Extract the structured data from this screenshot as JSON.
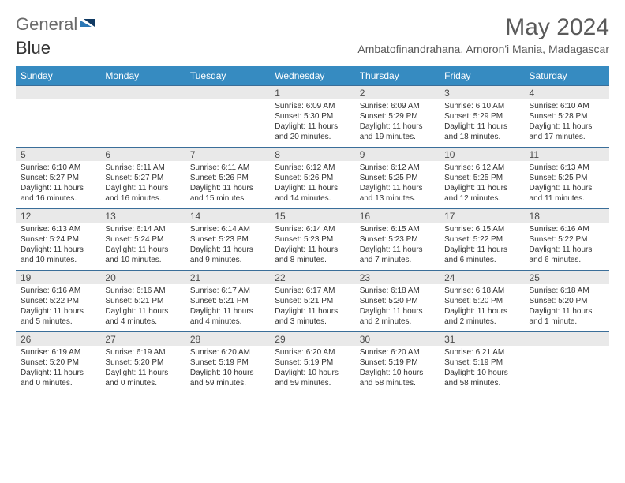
{
  "brand": {
    "part1": "General",
    "part2": "Blue"
  },
  "title": "May 2024",
  "location": "Ambatofinandrahana, Amoron'i Mania, Madagascar",
  "colors": {
    "header_bg": "#368bc1",
    "header_text": "#ffffff",
    "daynum_bg": "#e9e9e9",
    "row_border": "#3a6e99",
    "text": "#333333",
    "title_text": "#5a5a5a",
    "logo_gray": "#6a6a6a",
    "logo_blue": "#2b77b5",
    "page_bg": "#ffffff"
  },
  "typography": {
    "month_title_fontsize": 30,
    "location_fontsize": 14,
    "dayheader_fontsize": 12,
    "daynum_fontsize": 12,
    "daybody_fontsize": 10
  },
  "day_headers": [
    "Sunday",
    "Monday",
    "Tuesday",
    "Wednesday",
    "Thursday",
    "Friday",
    "Saturday"
  ],
  "weeks": [
    [
      {
        "n": "",
        "lines": [
          "",
          "",
          "",
          ""
        ]
      },
      {
        "n": "",
        "lines": [
          "",
          "",
          "",
          ""
        ]
      },
      {
        "n": "",
        "lines": [
          "",
          "",
          "",
          ""
        ]
      },
      {
        "n": "1",
        "lines": [
          "Sunrise: 6:09 AM",
          "Sunset: 5:30 PM",
          "Daylight: 11 hours",
          "and 20 minutes."
        ]
      },
      {
        "n": "2",
        "lines": [
          "Sunrise: 6:09 AM",
          "Sunset: 5:29 PM",
          "Daylight: 11 hours",
          "and 19 minutes."
        ]
      },
      {
        "n": "3",
        "lines": [
          "Sunrise: 6:10 AM",
          "Sunset: 5:29 PM",
          "Daylight: 11 hours",
          "and 18 minutes."
        ]
      },
      {
        "n": "4",
        "lines": [
          "Sunrise: 6:10 AM",
          "Sunset: 5:28 PM",
          "Daylight: 11 hours",
          "and 17 minutes."
        ]
      }
    ],
    [
      {
        "n": "5",
        "lines": [
          "Sunrise: 6:10 AM",
          "Sunset: 5:27 PM",
          "Daylight: 11 hours",
          "and 16 minutes."
        ]
      },
      {
        "n": "6",
        "lines": [
          "Sunrise: 6:11 AM",
          "Sunset: 5:27 PM",
          "Daylight: 11 hours",
          "and 16 minutes."
        ]
      },
      {
        "n": "7",
        "lines": [
          "Sunrise: 6:11 AM",
          "Sunset: 5:26 PM",
          "Daylight: 11 hours",
          "and 15 minutes."
        ]
      },
      {
        "n": "8",
        "lines": [
          "Sunrise: 6:12 AM",
          "Sunset: 5:26 PM",
          "Daylight: 11 hours",
          "and 14 minutes."
        ]
      },
      {
        "n": "9",
        "lines": [
          "Sunrise: 6:12 AM",
          "Sunset: 5:25 PM",
          "Daylight: 11 hours",
          "and 13 minutes."
        ]
      },
      {
        "n": "10",
        "lines": [
          "Sunrise: 6:12 AM",
          "Sunset: 5:25 PM",
          "Daylight: 11 hours",
          "and 12 minutes."
        ]
      },
      {
        "n": "11",
        "lines": [
          "Sunrise: 6:13 AM",
          "Sunset: 5:25 PM",
          "Daylight: 11 hours",
          "and 11 minutes."
        ]
      }
    ],
    [
      {
        "n": "12",
        "lines": [
          "Sunrise: 6:13 AM",
          "Sunset: 5:24 PM",
          "Daylight: 11 hours",
          "and 10 minutes."
        ]
      },
      {
        "n": "13",
        "lines": [
          "Sunrise: 6:14 AM",
          "Sunset: 5:24 PM",
          "Daylight: 11 hours",
          "and 10 minutes."
        ]
      },
      {
        "n": "14",
        "lines": [
          "Sunrise: 6:14 AM",
          "Sunset: 5:23 PM",
          "Daylight: 11 hours",
          "and 9 minutes."
        ]
      },
      {
        "n": "15",
        "lines": [
          "Sunrise: 6:14 AM",
          "Sunset: 5:23 PM",
          "Daylight: 11 hours",
          "and 8 minutes."
        ]
      },
      {
        "n": "16",
        "lines": [
          "Sunrise: 6:15 AM",
          "Sunset: 5:23 PM",
          "Daylight: 11 hours",
          "and 7 minutes."
        ]
      },
      {
        "n": "17",
        "lines": [
          "Sunrise: 6:15 AM",
          "Sunset: 5:22 PM",
          "Daylight: 11 hours",
          "and 6 minutes."
        ]
      },
      {
        "n": "18",
        "lines": [
          "Sunrise: 6:16 AM",
          "Sunset: 5:22 PM",
          "Daylight: 11 hours",
          "and 6 minutes."
        ]
      }
    ],
    [
      {
        "n": "19",
        "lines": [
          "Sunrise: 6:16 AM",
          "Sunset: 5:22 PM",
          "Daylight: 11 hours",
          "and 5 minutes."
        ]
      },
      {
        "n": "20",
        "lines": [
          "Sunrise: 6:16 AM",
          "Sunset: 5:21 PM",
          "Daylight: 11 hours",
          "and 4 minutes."
        ]
      },
      {
        "n": "21",
        "lines": [
          "Sunrise: 6:17 AM",
          "Sunset: 5:21 PM",
          "Daylight: 11 hours",
          "and 4 minutes."
        ]
      },
      {
        "n": "22",
        "lines": [
          "Sunrise: 6:17 AM",
          "Sunset: 5:21 PM",
          "Daylight: 11 hours",
          "and 3 minutes."
        ]
      },
      {
        "n": "23",
        "lines": [
          "Sunrise: 6:18 AM",
          "Sunset: 5:20 PM",
          "Daylight: 11 hours",
          "and 2 minutes."
        ]
      },
      {
        "n": "24",
        "lines": [
          "Sunrise: 6:18 AM",
          "Sunset: 5:20 PM",
          "Daylight: 11 hours",
          "and 2 minutes."
        ]
      },
      {
        "n": "25",
        "lines": [
          "Sunrise: 6:18 AM",
          "Sunset: 5:20 PM",
          "Daylight: 11 hours",
          "and 1 minute."
        ]
      }
    ],
    [
      {
        "n": "26",
        "lines": [
          "Sunrise: 6:19 AM",
          "Sunset: 5:20 PM",
          "Daylight: 11 hours",
          "and 0 minutes."
        ]
      },
      {
        "n": "27",
        "lines": [
          "Sunrise: 6:19 AM",
          "Sunset: 5:20 PM",
          "Daylight: 11 hours",
          "and 0 minutes."
        ]
      },
      {
        "n": "28",
        "lines": [
          "Sunrise: 6:20 AM",
          "Sunset: 5:19 PM",
          "Daylight: 10 hours",
          "and 59 minutes."
        ]
      },
      {
        "n": "29",
        "lines": [
          "Sunrise: 6:20 AM",
          "Sunset: 5:19 PM",
          "Daylight: 10 hours",
          "and 59 minutes."
        ]
      },
      {
        "n": "30",
        "lines": [
          "Sunrise: 6:20 AM",
          "Sunset: 5:19 PM",
          "Daylight: 10 hours",
          "and 58 minutes."
        ]
      },
      {
        "n": "31",
        "lines": [
          "Sunrise: 6:21 AM",
          "Sunset: 5:19 PM",
          "Daylight: 10 hours",
          "and 58 minutes."
        ]
      },
      {
        "n": "",
        "lines": [
          "",
          "",
          "",
          ""
        ]
      }
    ]
  ]
}
